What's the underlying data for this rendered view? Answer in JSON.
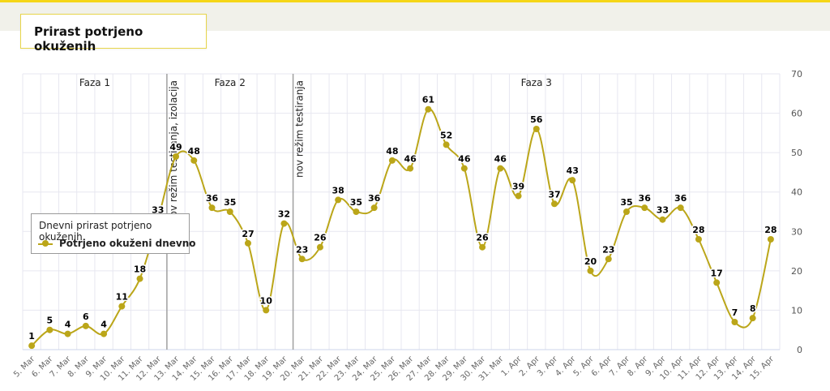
{
  "title": "Prirast potrjeno okuženih",
  "colors": {
    "series": "#bba619",
    "accent": "#f5d617",
    "grid": "#e7e7f0"
  },
  "legend": {
    "title": "Dnevni prirast potrjeno okuženih"
  },
  "chart_data": {
    "type": "line",
    "x": [
      "5. Mar",
      "6. Mar",
      "7. Mar",
      "8. Mar",
      "9. Mar",
      "10. Mar",
      "11. Mar",
      "12. Mar",
      "13. Mar",
      "14. Mar",
      "15. Mar",
      "16. Mar",
      "17. Mar",
      "18. Mar",
      "19. Mar",
      "20. Mar",
      "21. Mar",
      "22. Mar",
      "23. Mar",
      "24. Mar",
      "25. Mar",
      "26. Mar",
      "27. Mar",
      "28. Mar",
      "29. Mar",
      "30. Mar",
      "31. Mar",
      "1. Apr",
      "2. Apr",
      "3. Apr",
      "4. Apr",
      "5. Apr",
      "6. Apr",
      "7. Apr",
      "8. Apr",
      "9. Apr",
      "10. Apr",
      "11. Apr",
      "12. Apr",
      "13. Apr",
      "14. Apr",
      "15. Apr"
    ],
    "series": [
      {
        "name": "Potrjeno okuženi dnevno",
        "values": [
          1,
          5,
          4,
          6,
          4,
          11,
          18,
          33,
          49,
          48,
          36,
          35,
          27,
          10,
          32,
          23,
          26,
          38,
          35,
          36,
          48,
          46,
          61,
          52,
          46,
          26,
          46,
          39,
          56,
          37,
          43,
          20,
          23,
          35,
          36,
          33,
          36,
          28,
          17,
          7,
          8,
          28
        ]
      }
    ],
    "yticks": [
      0,
      10,
      20,
      30,
      40,
      50,
      60,
      70
    ],
    "ylim": [
      0,
      70
    ],
    "y_axis_side": "right",
    "grid": true,
    "legend_position": "left-middle",
    "data_labels": true,
    "phases": [
      {
        "label": "Faza 1",
        "from": "5. Mar",
        "to": "12. Mar"
      },
      {
        "label": "Faza 2",
        "from": "13. Mar",
        "to": "19. Mar"
      },
      {
        "label": "Faza 3",
        "from": "20. Mar",
        "to": "15. Apr"
      }
    ],
    "markers": [
      {
        "label": "nov režim testiranja, izolacija",
        "between": [
          "12. Mar",
          "13. Mar"
        ]
      },
      {
        "label": "nov režim testiranja",
        "between": [
          "19. Mar",
          "20. Mar"
        ]
      }
    ]
  }
}
